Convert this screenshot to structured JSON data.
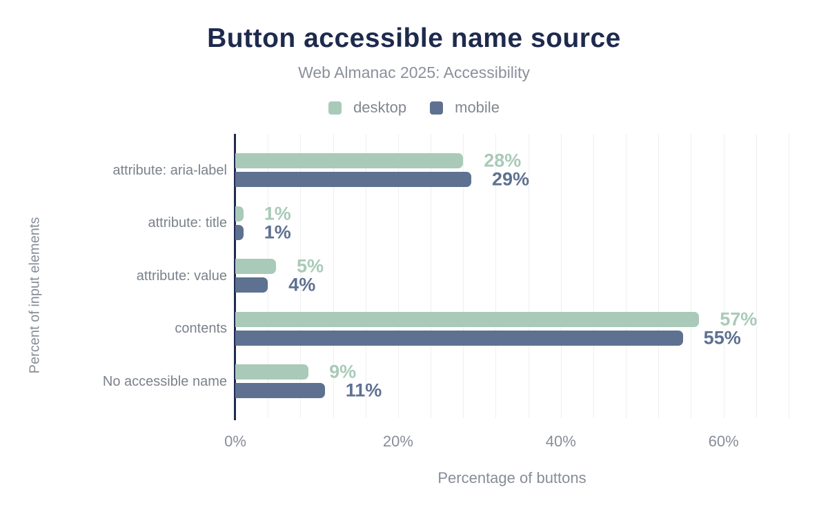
{
  "title": "Button accessible name source",
  "subtitle": "Web Almanac 2025: Accessibility",
  "colors": {
    "background": "#ffffff",
    "title_navy": "#1e2a4d",
    "axis_navy": "#1e2a4d",
    "desktop_green": "#a9cab8",
    "mobile_blue": "#5e7190",
    "muted_text": "#878d97",
    "category_text": "#7b818b",
    "gridline": "#efeef1"
  },
  "chart_data": {
    "type": "bar",
    "orientation": "horizontal",
    "title": "Button accessible name source",
    "subtitle": "Web Almanac 2025: Accessibility",
    "categories": [
      "attribute: aria-label",
      "attribute: title",
      "attribute: value",
      "contents",
      "No accessible name"
    ],
    "series": [
      {
        "name": "desktop",
        "color": "#a9cab8",
        "values": [
          28,
          1,
          5,
          57,
          9
        ],
        "value_labels": [
          "28%",
          "1%",
          "5%",
          "57%",
          "9%"
        ]
      },
      {
        "name": "mobile",
        "color": "#5e7190",
        "values": [
          29,
          1,
          4,
          55,
          11
        ],
        "value_labels": [
          "29%",
          "1%",
          "4%",
          "55%",
          "11%"
        ]
      }
    ],
    "xlabel": "Percentage of buttons",
    "ylabel": "Percent of input elements",
    "x_ticks": [
      "0%",
      "20%",
      "40%",
      "60%"
    ],
    "x_tick_values": [
      0,
      20,
      40,
      60
    ],
    "xlim": [
      0,
      68
    ],
    "gridline_step": 4,
    "grid": true,
    "legend_position": "top"
  }
}
